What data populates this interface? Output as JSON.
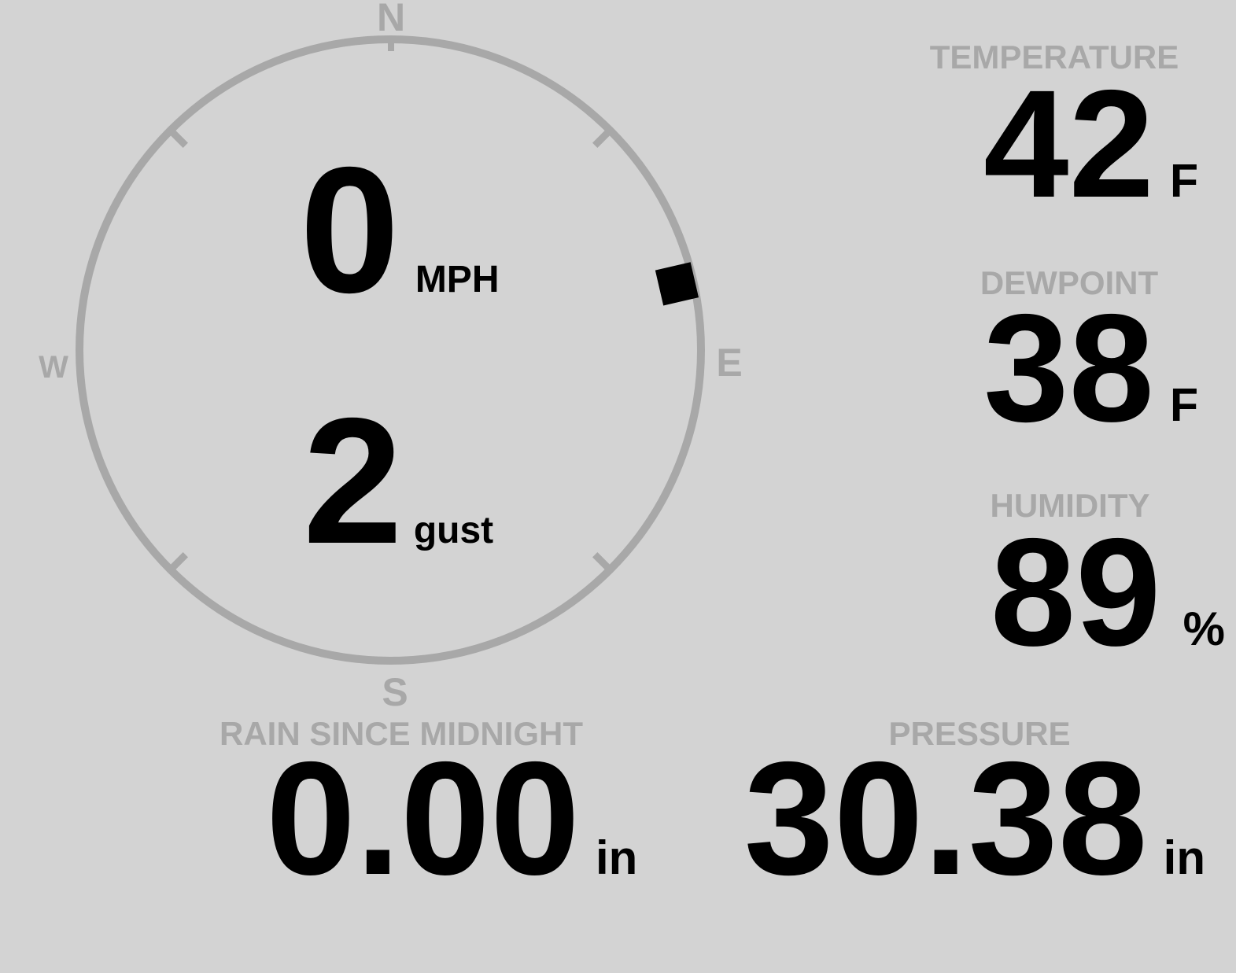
{
  "theme": {
    "background": "#d3d3d3",
    "muted": "#a8a8a8",
    "value_color": "#000000"
  },
  "wind": {
    "speed": "0",
    "speed_unit": "MPH",
    "gust": "2",
    "gust_unit": "gust",
    "direction_degrees": 77,
    "compass": {
      "north": "N",
      "east": "E",
      "south": "S",
      "west": "W"
    }
  },
  "metrics": {
    "temperature": {
      "label": "TEMPERATURE",
      "value": "42",
      "unit": "F"
    },
    "dewpoint": {
      "label": "DEWPOINT",
      "value": "38",
      "unit": "F"
    },
    "humidity": {
      "label": "HUMIDITY",
      "value": "89",
      "unit": "%"
    },
    "rain_since_midnight": {
      "label": "RAIN SINCE MIDNIGHT",
      "value": "0.00",
      "unit": "in"
    },
    "pressure": {
      "label": "PRESSURE",
      "value": "30.38",
      "unit": "in"
    }
  }
}
